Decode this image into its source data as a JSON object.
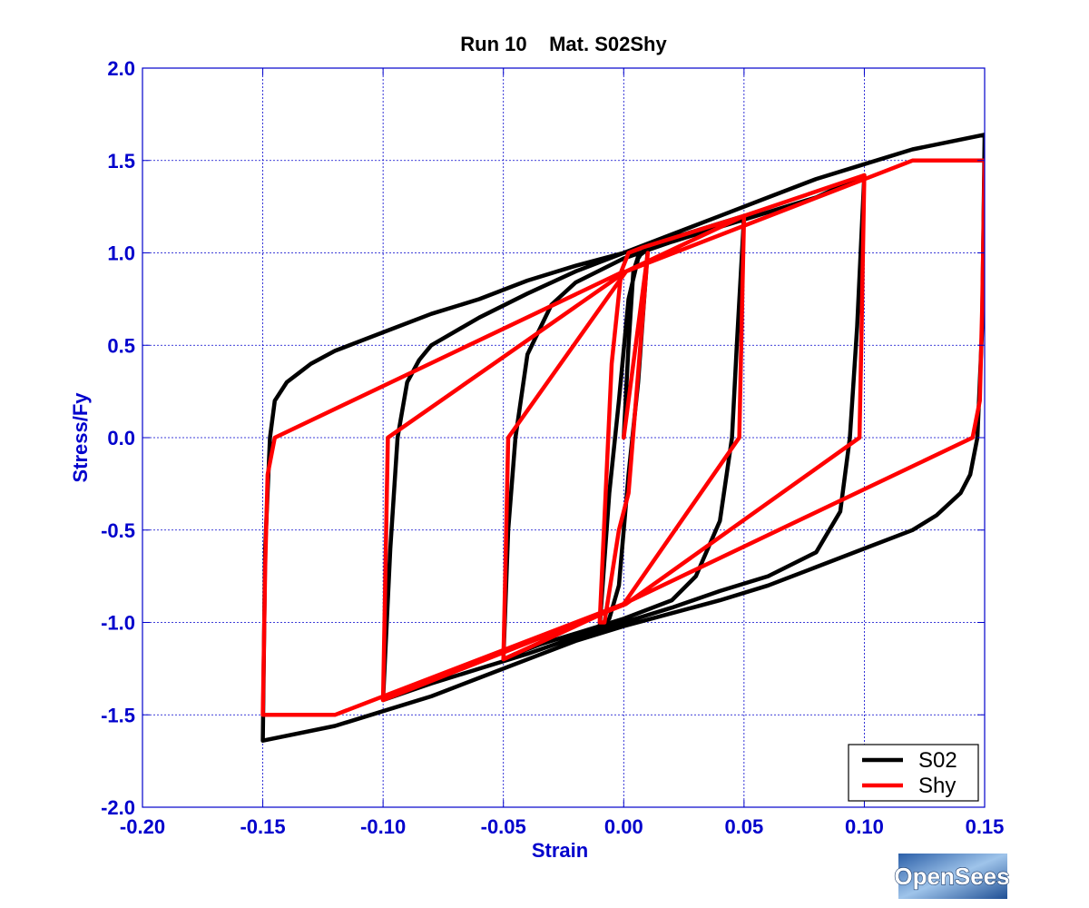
{
  "chart_data": {
    "type": "line",
    "title": "Run 10    Mat. S02Shy",
    "xlabel": "Strain",
    "ylabel": "Stress/Fy",
    "xlim": [
      -0.2,
      0.15
    ],
    "ylim": [
      -2.0,
      2.0
    ],
    "xticks": [
      -0.2,
      -0.15,
      -0.1,
      -0.05,
      0.0,
      0.05,
      0.1,
      0.15
    ],
    "xtick_labels": [
      "-0.20",
      "-0.15",
      "-0.10",
      "-0.05",
      "0.00",
      "0.05",
      "0.10",
      "0.15"
    ],
    "yticks": [
      2.0,
      1.5,
      1.0,
      0.5,
      0.0,
      -0.5,
      -1.0,
      -1.5,
      -2.0
    ],
    "ytick_labels": [
      "2.0",
      "1.5",
      "1.0",
      "0.5",
      "0.0",
      "-0.5",
      "-1.0",
      "-1.5",
      "-2.0"
    ],
    "grid": true,
    "legend_position": "bottom-right",
    "series": [
      {
        "name": "S02",
        "color": "#000000",
        "x": [
          0.0,
          0.002,
          0.004,
          0.006,
          0.008,
          0.01,
          0.006,
          0.002,
          -0.002,
          -0.006,
          -0.01,
          -0.006,
          -0.002,
          0.002,
          0.006,
          0.01,
          0.02,
          0.03,
          0.04,
          0.05,
          0.047,
          0.045,
          0.04,
          0.03,
          0.02,
          0.0,
          -0.02,
          -0.035,
          -0.045,
          -0.05,
          -0.048,
          -0.045,
          -0.04,
          -0.03,
          -0.02,
          0.0,
          0.02,
          0.04,
          0.06,
          0.08,
          0.1,
          0.097,
          0.094,
          0.09,
          0.08,
          0.06,
          0.04,
          0.02,
          0.0,
          -0.02,
          -0.04,
          -0.06,
          -0.08,
          -0.1,
          -0.097,
          -0.094,
          -0.09,
          -0.085,
          -0.08,
          -0.06,
          -0.04,
          -0.02,
          0.0,
          0.02,
          0.04,
          0.06,
          0.08,
          0.1,
          0.12,
          0.15,
          0.149,
          0.147,
          0.144,
          0.14,
          0.13,
          0.12,
          0.1,
          0.08,
          0.06,
          0.04,
          0.02,
          0.0,
          -0.02,
          -0.04,
          -0.06,
          -0.08,
          -0.1,
          -0.12,
          -0.15,
          -0.149,
          -0.147,
          -0.145,
          -0.14,
          -0.135,
          -0.13,
          -0.12,
          -0.1,
          -0.08,
          -0.06,
          -0.04,
          -0.02,
          0.0
        ],
        "y": [
          0.0,
          0.5,
          0.9,
          0.98,
          1.0,
          1.02,
          0.3,
          -0.2,
          -0.8,
          -0.98,
          -1.02,
          -0.3,
          0.2,
          0.75,
          0.97,
          1.05,
          1.08,
          1.12,
          1.16,
          1.2,
          0.5,
          0.0,
          -0.45,
          -0.75,
          -0.88,
          -0.98,
          -1.06,
          -1.12,
          -1.17,
          -1.2,
          -0.5,
          0.0,
          0.45,
          0.72,
          0.84,
          0.97,
          1.06,
          1.14,
          1.22,
          1.3,
          1.42,
          0.6,
          0.0,
          -0.4,
          -0.62,
          -0.75,
          -0.83,
          -0.92,
          -1.0,
          -1.08,
          -1.17,
          -1.25,
          -1.33,
          -1.42,
          -0.6,
          0.0,
          0.3,
          0.42,
          0.5,
          0.65,
          0.78,
          0.9,
          1.0,
          1.1,
          1.2,
          1.3,
          1.4,
          1.48,
          1.56,
          1.64,
          0.6,
          0.0,
          -0.2,
          -0.3,
          -0.42,
          -0.5,
          -0.6,
          -0.7,
          -0.8,
          -0.88,
          -0.95,
          -1.02,
          -1.1,
          -1.2,
          -1.3,
          -1.4,
          -1.48,
          -1.56,
          -1.64,
          -0.6,
          0.0,
          0.2,
          0.3,
          0.35,
          0.4,
          0.47,
          0.57,
          0.67,
          0.75,
          0.85,
          0.93,
          1.0
        ]
      },
      {
        "name": "Shy",
        "color": "#ff0000",
        "x": [
          0.0,
          0.005,
          0.01,
          0.002,
          -0.002,
          -0.008,
          -0.01,
          -0.005,
          -0.001,
          0.002,
          0.008,
          0.05,
          0.049,
          0.048,
          0.0,
          -0.05,
          -0.049,
          -0.048,
          0.001,
          0.05,
          0.1,
          0.099,
          0.098,
          0.001,
          -0.1,
          -0.099,
          -0.098,
          0.001,
          0.12,
          0.15,
          0.149,
          0.148,
          0.145,
          0.0,
          -0.12,
          -0.15,
          -0.149,
          -0.148,
          -0.145,
          0.0
        ],
        "y": [
          0.0,
          0.5,
          1.0,
          -0.3,
          -0.5,
          -1.0,
          -1.0,
          0.4,
          0.9,
          1.0,
          1.03,
          1.2,
          0.6,
          0.0,
          -0.9,
          -1.2,
          -0.6,
          0.0,
          0.9,
          1.2,
          1.42,
          0.7,
          0.0,
          -0.9,
          -1.42,
          -0.7,
          0.0,
          0.9,
          1.5,
          1.5,
          0.7,
          0.2,
          0.0,
          -0.9,
          -1.5,
          -1.5,
          -0.7,
          -0.2,
          0.0,
          0.9
        ]
      }
    ]
  },
  "logo": {
    "text": "OpenSees"
  }
}
